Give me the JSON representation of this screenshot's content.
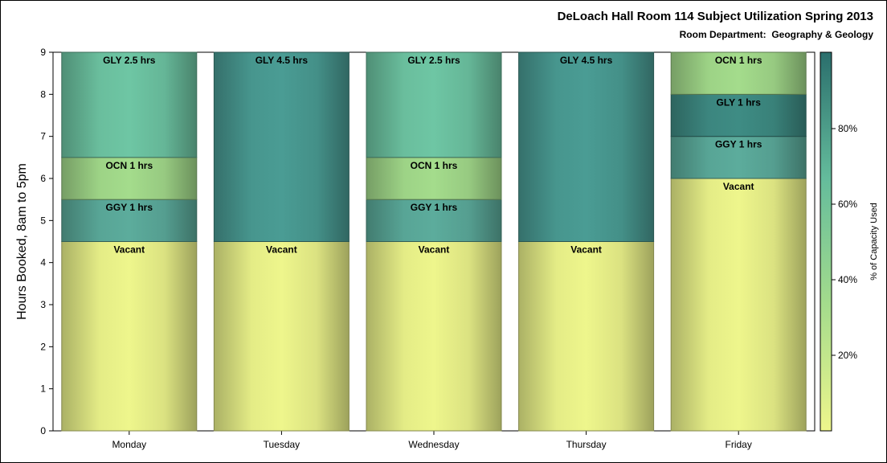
{
  "chart_data": {
    "type": "bar",
    "stacked": true,
    "title": "DeLoach Hall Room 114 Subject Utilization Spring 2013",
    "subtitle": "Room Department:  Geography & Geology",
    "ylabel": "Hours Booked, 8am to 5pm",
    "xlabel": "",
    "ylim": [
      0,
      9
    ],
    "yticks": [
      "0",
      "1",
      "2",
      "3",
      "4",
      "5",
      "6",
      "7",
      "8",
      "9"
    ],
    "categories": [
      "Monday",
      "Tuesday",
      "Wednesday",
      "Thursday",
      "Friday"
    ],
    "stacks": [
      {
        "day": "Monday",
        "segments": [
          {
            "label": "Vacant",
            "hours": 4.5
          },
          {
            "label": "GGY 1 hrs",
            "hours": 1
          },
          {
            "label": "OCN 1 hrs",
            "hours": 1
          },
          {
            "label": "GLY 2.5 hrs",
            "hours": 2.5
          }
        ]
      },
      {
        "day": "Tuesday",
        "segments": [
          {
            "label": "Vacant",
            "hours": 4.5
          },
          {
            "label": "GLY 4.5 hrs",
            "hours": 4.5
          }
        ]
      },
      {
        "day": "Wednesday",
        "segments": [
          {
            "label": "Vacant",
            "hours": 4.5
          },
          {
            "label": "GGY 1 hrs",
            "hours": 1
          },
          {
            "label": "OCN 1 hrs",
            "hours": 1
          },
          {
            "label": "GLY 2.5 hrs",
            "hours": 2.5
          }
        ]
      },
      {
        "day": "Thursday",
        "segments": [
          {
            "label": "Vacant",
            "hours": 4.5
          },
          {
            "label": "GLY 4.5 hrs",
            "hours": 4.5
          }
        ]
      },
      {
        "day": "Friday",
        "segments": [
          {
            "label": "Vacant",
            "hours": 6
          },
          {
            "label": "GGY 1 hrs",
            "hours": 1
          },
          {
            "label": "GLY 1 hrs",
            "hours": 1
          },
          {
            "label": "OCN 1 hrs",
            "hours": 1
          }
        ]
      }
    ],
    "colorbar": {
      "label": "% of Capacity Used",
      "ticks": [
        "20%",
        "40%",
        "60%",
        "80%"
      ],
      "colors": [
        "#eef68c",
        "#a4dc8c",
        "#64bc9c",
        "#2a6e6c"
      ]
    },
    "segment_colors": {
      "Vacant": "#eef68c",
      "OCN": "#a4dc8c",
      "GLY 2.5": "#6ec6a4",
      "GGY": "#5cac9c",
      "GLY 1": "#3e8c84",
      "GLY 4.5": "#4a9c94"
    },
    "grid": false,
    "legend": "colorbar-right"
  }
}
